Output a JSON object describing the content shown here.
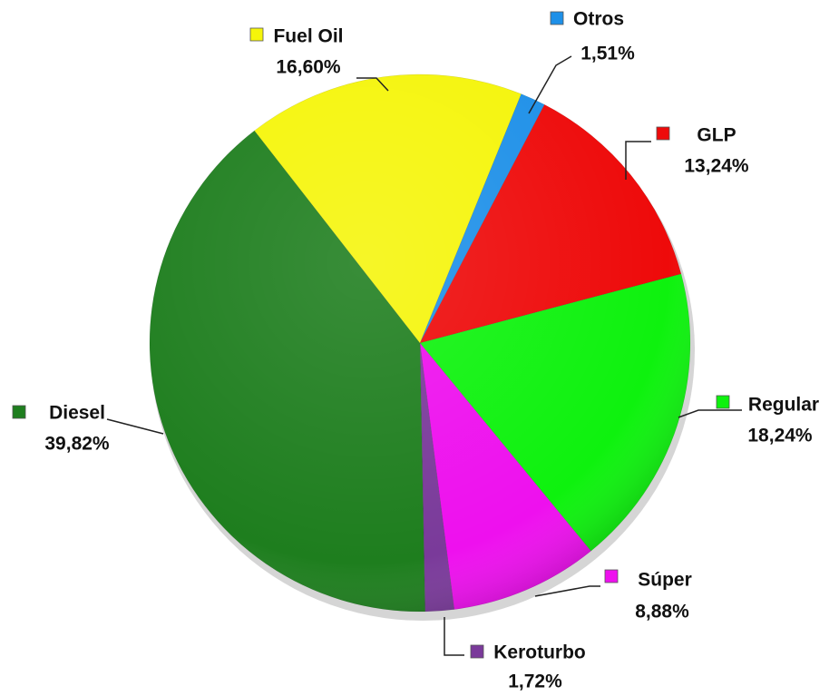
{
  "chart_data": {
    "type": "pie",
    "categories": [
      "Otros",
      "GLP",
      "Regular",
      "Súper",
      "Keroturbo",
      "Diesel",
      "Fuel Oil"
    ],
    "values": [
      1.51,
      13.24,
      18.24,
      8.88,
      1.72,
      39.82,
      16.6
    ],
    "value_labels": [
      "1,51%",
      "13,24%",
      "18,24%",
      "8,88%",
      "1,72%",
      "39,82%",
      "16,60%"
    ],
    "colors": [
      "#1e90e8",
      "#ee0a0a",
      "#0ef20e",
      "#ee10ee",
      "#7a3a9a",
      "#1e7e1e",
      "#f5f50a"
    ]
  }
}
